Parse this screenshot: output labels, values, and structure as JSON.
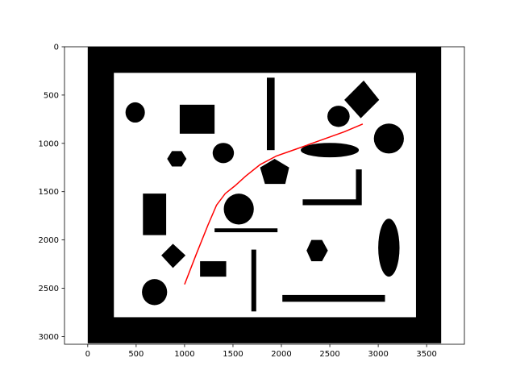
{
  "chart_data": {
    "type": "scatter",
    "title": "",
    "xlabel": "",
    "ylabel": "",
    "xlim": [
      -240,
      3890
    ],
    "ylim": [
      3080,
      0
    ],
    "y_inverted": true,
    "x_ticks": [
      0,
      500,
      1000,
      1500,
      2000,
      2500,
      3000,
      3500
    ],
    "y_ticks": [
      0,
      500,
      1000,
      1500,
      2000,
      2500,
      3000
    ],
    "grid": false,
    "colors": {
      "path": "#ff0000",
      "obstacles": "#000000",
      "free_space": "#ffffff"
    },
    "map": {
      "outer": [
        0,
        0,
        3650,
        3070
      ],
      "inner": [
        270,
        270,
        3390,
        2800
      ],
      "obstacles": [
        {
          "kind": "ellipse",
          "cx": 490,
          "cy": 680,
          "rx": 100,
          "ry": 105
        },
        {
          "kind": "rect",
          "x": 950,
          "y": 600,
          "w": 360,
          "h": 300
        },
        {
          "kind": "rect",
          "x": 1850,
          "y": 320,
          "w": 80,
          "h": 750
        },
        {
          "kind": "ellipse",
          "cx": 2590,
          "cy": 720,
          "rx": 115,
          "ry": 110
        },
        {
          "kind": "polygon",
          "points": [
            [
              2650,
              550
            ],
            [
              2850,
              350
            ],
            [
              3010,
              550
            ],
            [
              2820,
              740
            ]
          ]
        },
        {
          "kind": "ellipse",
          "cx": 3110,
          "cy": 950,
          "rx": 155,
          "ry": 155
        },
        {
          "kind": "polygon",
          "points": [
            [
              820,
              1160
            ],
            [
              870,
              1080
            ],
            [
              970,
              1080
            ],
            [
              1020,
              1160
            ],
            [
              970,
              1240
            ],
            [
              870,
              1240
            ]
          ]
        },
        {
          "kind": "ellipse",
          "cx": 1400,
          "cy": 1100,
          "rx": 110,
          "ry": 105
        },
        {
          "kind": "polygon",
          "points": [
            [
              1930,
              1160
            ],
            [
              2080,
              1250
            ],
            [
              2040,
              1420
            ],
            [
              1830,
              1420
            ],
            [
              1780,
              1250
            ]
          ]
        },
        {
          "kind": "ellipse",
          "cx": 2500,
          "cy": 1070,
          "rx": 300,
          "ry": 75
        },
        {
          "kind": "polygon",
          "points": [
            [
              2770,
              1270
            ],
            [
              2830,
              1270
            ],
            [
              2830,
              1640
            ],
            [
              2220,
              1640
            ],
            [
              2220,
              1580
            ],
            [
              2770,
              1580
            ]
          ]
        },
        {
          "kind": "rect",
          "x": 570,
          "y": 1520,
          "w": 240,
          "h": 430
        },
        {
          "kind": "ellipse",
          "cx": 1560,
          "cy": 1680,
          "rx": 155,
          "ry": 160
        },
        {
          "kind": "rect",
          "x": 1310,
          "y": 1880,
          "w": 650,
          "h": 40
        },
        {
          "kind": "polygon",
          "points": [
            [
              2260,
              2110
            ],
            [
              2310,
              2000
            ],
            [
              2420,
              2000
            ],
            [
              2480,
              2110
            ],
            [
              2420,
              2220
            ],
            [
              2310,
              2220
            ]
          ]
        },
        {
          "kind": "ellipse",
          "cx": 3110,
          "cy": 2080,
          "rx": 110,
          "ry": 300
        },
        {
          "kind": "polygon",
          "points": [
            [
              760,
              2160
            ],
            [
              880,
              2040
            ],
            [
              1010,
              2160
            ],
            [
              880,
              2290
            ]
          ]
        },
        {
          "kind": "rect",
          "x": 1160,
          "y": 2220,
          "w": 270,
          "h": 160
        },
        {
          "kind": "rect",
          "x": 1690,
          "y": 2100,
          "w": 50,
          "h": 640
        },
        {
          "kind": "ellipse",
          "cx": 690,
          "cy": 2540,
          "rx": 130,
          "ry": 135
        },
        {
          "kind": "rect",
          "x": 2010,
          "y": 2570,
          "w": 1060,
          "h": 70
        }
      ]
    },
    "path": {
      "x": [
        1000,
        1120,
        1240,
        1330,
        1420,
        1520,
        1630,
        1780,
        1950,
        2150,
        2400,
        2650,
        2840
      ],
      "y": [
        2460,
        2150,
        1850,
        1640,
        1520,
        1440,
        1340,
        1220,
        1130,
        1060,
        970,
        880,
        800
      ]
    }
  }
}
